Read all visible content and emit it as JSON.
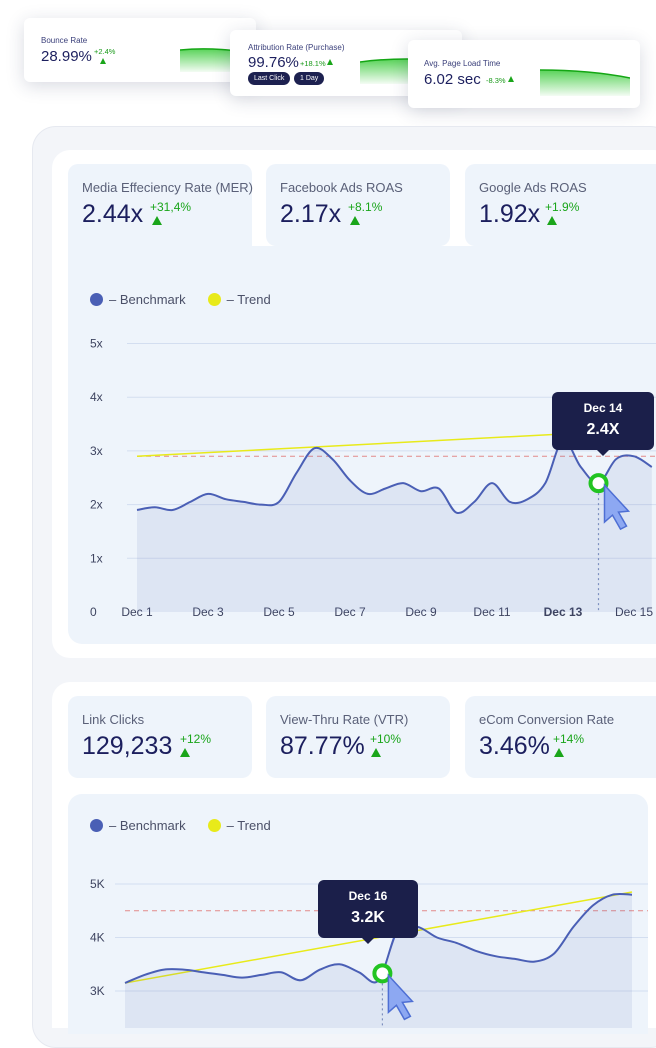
{
  "mini_cards": [
    {
      "label": "Bounce Rate",
      "value": "28.99%",
      "delta": "+2.4%"
    },
    {
      "label": "Attribution Rate (Purchase)",
      "value": "99.76%",
      "delta": "+18.1%",
      "pills": [
        "Last Click",
        "1 Day"
      ]
    },
    {
      "label": "Avg. Page Load Time",
      "value": "6.02 sec",
      "delta": "-8.3%"
    }
  ],
  "section1": {
    "metrics": [
      {
        "title": "Media Effeciency Rate (MER)",
        "value": "2.44x",
        "delta": "+31,4%"
      },
      {
        "title": "Facebook Ads ROAS",
        "value": "2.17x",
        "delta": "+8.1%"
      },
      {
        "title": "Google Ads ROAS",
        "value": "1.92x",
        "delta": "+1.9%"
      }
    ],
    "legend": {
      "benchmark": "– Benchmark",
      "trend": "– Trend"
    },
    "tooltip": {
      "date": "Dec 14",
      "value": "2.4X"
    }
  },
  "section2": {
    "metrics": [
      {
        "title": "Link Clicks",
        "value": "129,233",
        "delta": "+12%"
      },
      {
        "title": "View-Thru Rate (VTR)",
        "value": "87.77%",
        "delta": "+10%"
      },
      {
        "title": "eCom Conversion Rate",
        "value": "3.46%",
        "delta": "+14%"
      }
    ],
    "legend": {
      "benchmark": "– Benchmark",
      "trend": "– Trend"
    },
    "tooltip": {
      "date": "Dec 16",
      "value": "3.2K"
    }
  },
  "colors": {
    "benchmark": "#4a5fb5",
    "trend": "#e8ea1a",
    "accent_green": "#1aa51a",
    "dark": "#1b1f4a"
  },
  "chart_data": [
    {
      "type": "area",
      "ylim": [
        0,
        5
      ],
      "y_ticks": [
        "0",
        "1x",
        "2x",
        "3x",
        "4x",
        "5x"
      ],
      "x_ticks": [
        "Dec 1",
        "Dec 3",
        "Dec 5",
        "Dec 7",
        "Dec 9",
        "Dec 11",
        "Dec 13",
        "Dec 15"
      ],
      "highlight_tick": "Dec 13",
      "benchmark_line": 2.9,
      "series": [
        {
          "name": "Benchmark",
          "x": [
            1,
            1.5,
            2,
            2.5,
            3,
            3.5,
            4,
            4.5,
            5,
            5.5,
            6,
            6.5,
            7,
            7.5,
            8,
            8.5,
            9,
            9.5,
            10,
            10.5,
            11,
            11.5,
            12,
            12.5,
            13,
            13.5,
            14,
            14.5,
            15,
            15.5
          ],
          "values": [
            1.9,
            1.95,
            1.9,
            2.05,
            2.2,
            2.1,
            2.05,
            2.0,
            2.05,
            2.6,
            3.05,
            2.85,
            2.45,
            2.2,
            2.3,
            2.4,
            2.25,
            2.3,
            1.85,
            2.05,
            2.4,
            2.05,
            2.1,
            2.4,
            3.2,
            2.7,
            2.4,
            2.85,
            2.9,
            2.7
          ]
        },
        {
          "name": "Trend",
          "x": [
            1,
            14
          ],
          "values": [
            2.9,
            3.35
          ]
        }
      ]
    },
    {
      "type": "area",
      "y_ticks": [
        "3K",
        "4K",
        "5K"
      ],
      "benchmark_line": 4.5,
      "series": [
        {
          "name": "Benchmark",
          "x": [
            1,
            1.5,
            2,
            2.5,
            3,
            3.5,
            4,
            4.5,
            5,
            5.5,
            6,
            6.5,
            7,
            7.5,
            8,
            8.5,
            9,
            9.5,
            10,
            10.5,
            11,
            11.5,
            12,
            12.5,
            13,
            13.5,
            14
          ],
          "values": [
            3.15,
            3.3,
            3.4,
            3.4,
            3.35,
            3.3,
            3.25,
            3.3,
            3.35,
            3.2,
            3.4,
            3.5,
            3.35,
            3.2,
            4.15,
            4.2,
            4.0,
            3.9,
            3.75,
            3.65,
            3.6,
            3.55,
            3.7,
            4.2,
            4.6,
            4.8,
            4.8
          ]
        },
        {
          "name": "Trend",
          "x": [
            1,
            14
          ],
          "values": [
            3.15,
            4.85
          ]
        }
      ]
    }
  ]
}
